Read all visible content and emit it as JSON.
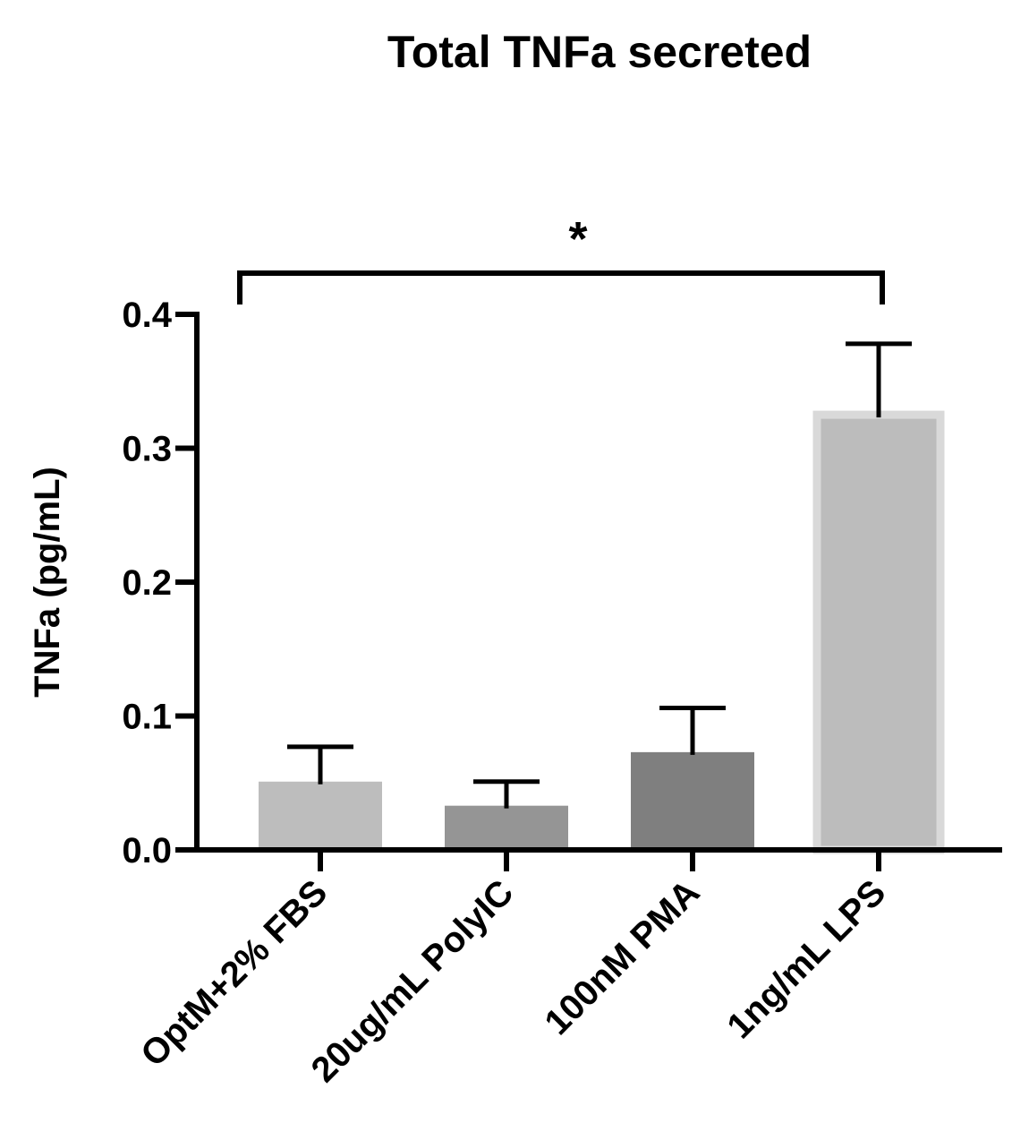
{
  "chart_data": {
    "type": "bar",
    "title": "Total TNFa secreted",
    "xlabel": "",
    "ylabel": "TNFa (pg/mL)",
    "ylim": [
      0,
      0.4
    ],
    "yticks": [
      "0.0",
      "0.1",
      "0.2",
      "0.3",
      "0.4"
    ],
    "categories": [
      "OptM+2% FBS",
      "20ug/mL PolyIC",
      "100nM PMA",
      "1ng/mL LPS"
    ],
    "values": [
      0.051,
      0.033,
      0.073,
      0.325
    ],
    "error_upper": [
      0.077,
      0.051,
      0.106,
      0.378
    ],
    "colors": [
      "#bdbdbd",
      "#959595",
      "#7f7f7f",
      "#bcbcbc"
    ],
    "highlight_border": [
      false,
      false,
      false,
      true
    ],
    "grid": false,
    "legend": "none",
    "significance": [
      {
        "from": "OptM+2% FBS",
        "to": "1ng/mL LPS",
        "label": "*"
      }
    ]
  }
}
